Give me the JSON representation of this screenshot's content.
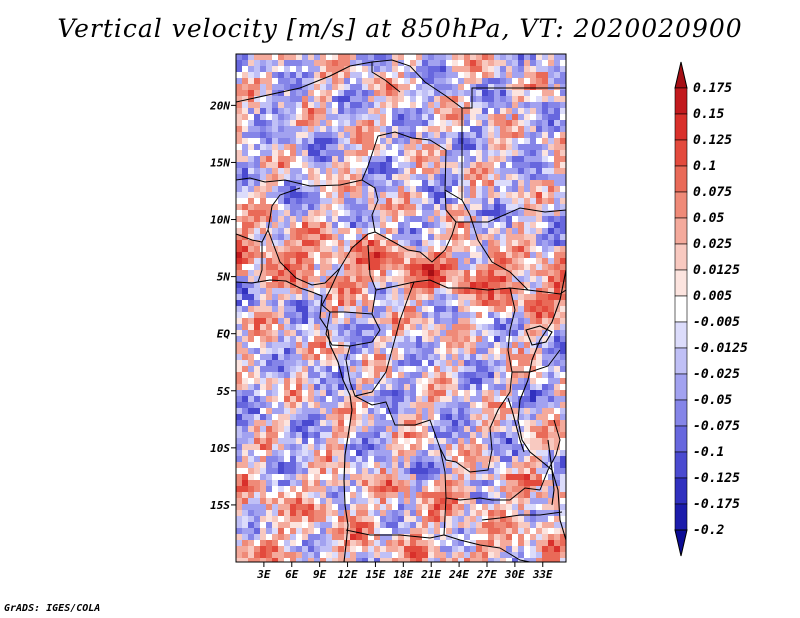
{
  "title": "Vertical velocity [m/s] at 850hPa, VT: 2020020900",
  "credit": "GrADS: IGES/COLA",
  "map": {
    "lon_range": [
      0,
      35.5
    ],
    "lat_range": [
      -20,
      24.5
    ],
    "lat_ticks": [
      {
        "value": 20,
        "label": "20N"
      },
      {
        "value": 15,
        "label": "15N"
      },
      {
        "value": 10,
        "label": "10N"
      },
      {
        "value": 5,
        "label": "5N"
      },
      {
        "value": 0,
        "label": "EQ"
      },
      {
        "value": -5,
        "label": "5S"
      },
      {
        "value": -10,
        "label": "10S"
      },
      {
        "value": -15,
        "label": "15S"
      }
    ],
    "lon_ticks": [
      {
        "value": 3,
        "label": "3E"
      },
      {
        "value": 6,
        "label": "6E"
      },
      {
        "value": 9,
        "label": "9E"
      },
      {
        "value": 12,
        "label": "12E"
      },
      {
        "value": 15,
        "label": "15E"
      },
      {
        "value": 18,
        "label": "18E"
      },
      {
        "value": 21,
        "label": "21E"
      },
      {
        "value": 24,
        "label": "24E"
      },
      {
        "value": 27,
        "label": "27E"
      },
      {
        "value": 30,
        "label": "30E"
      },
      {
        "value": 33,
        "label": "33E"
      }
    ],
    "border_color": "#000000"
  },
  "colorbar": {
    "levels": [
      "0.175",
      "0.15",
      "0.125",
      "0.1",
      "0.075",
      "0.05",
      "0.025",
      "0.0125",
      "0.005",
      "-0.005",
      "-0.0125",
      "-0.025",
      "-0.05",
      "-0.075",
      "-0.1",
      "-0.125",
      "-0.175",
      "-0.2"
    ],
    "colors": [
      "#a50f15",
      "#c21a1e",
      "#d9302b",
      "#e34a3d",
      "#e96a58",
      "#ef8a78",
      "#f4aa9c",
      "#f8c9c0",
      "#fce4df",
      "#ffffff",
      "#dcdcfb",
      "#c0c0f6",
      "#a2a2f0",
      "#8585e8",
      "#6767de",
      "#4a4ad0",
      "#3030bf",
      "#1c1cab",
      "#0c0c95"
    ]
  }
}
